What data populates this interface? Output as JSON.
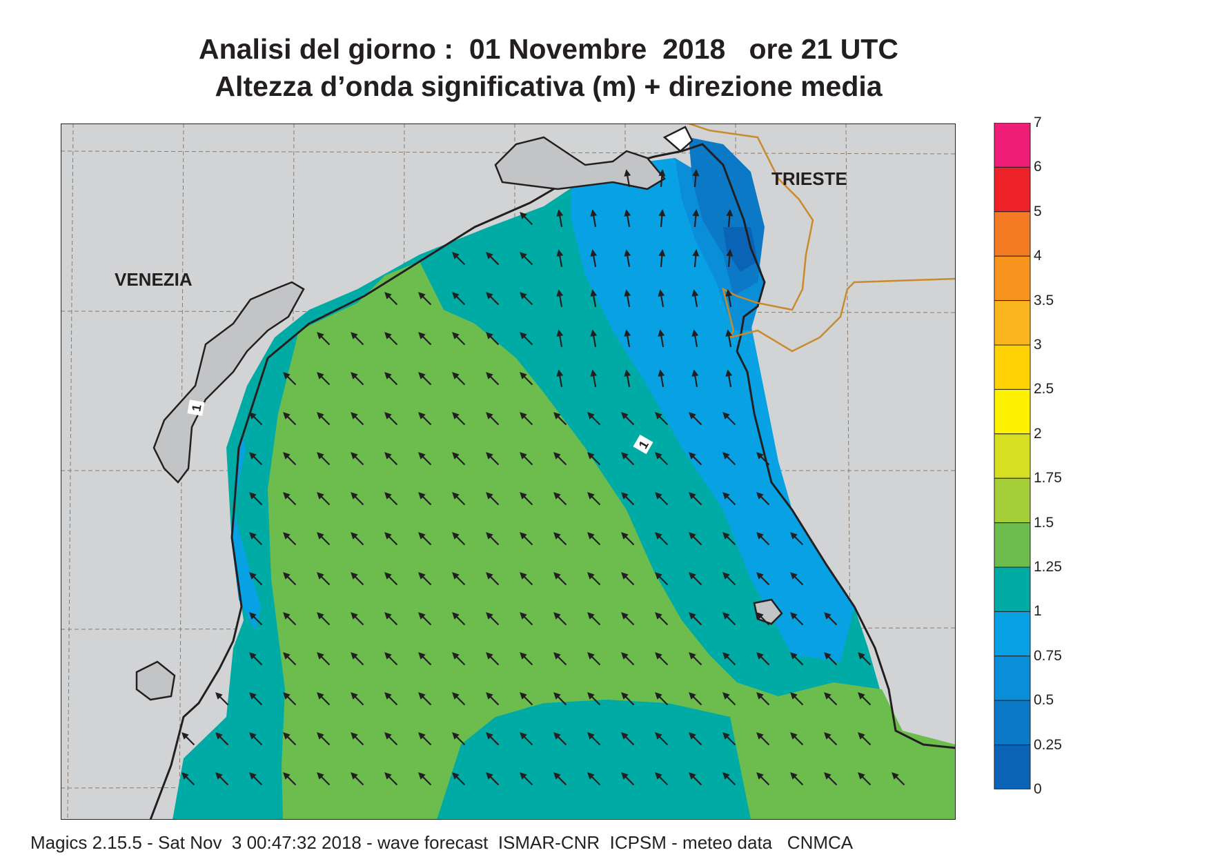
{
  "header": {
    "title_line1": "Analisi del giorno :  01 Novembre  2018   ore 21 UTC",
    "title_line2": "Altezza d’onda significativa (m) + direzione media"
  },
  "map": {
    "labels": {
      "venezia": "VENEZIA",
      "trieste": "TRIESTE"
    },
    "contour_label": "1",
    "colors": {
      "land": "#d1d3d4",
      "border": "#c98b2a",
      "coast": "#231f20",
      "grid": "#8a7a6a",
      "arrow": "#231f20"
    },
    "wave_direction": "towards north-west"
  },
  "legend": {
    "bands": [
      {
        "from": "6",
        "to": "7",
        "color": "#ee1d75"
      },
      {
        "from": "5",
        "to": "6",
        "color": "#ed2128"
      },
      {
        "from": "4",
        "to": "5",
        "color": "#f47a24"
      },
      {
        "from": "3.5",
        "to": "4",
        "color": "#f7941d"
      },
      {
        "from": "3",
        "to": "3.5",
        "color": "#fbb51e"
      },
      {
        "from": "2.5",
        "to": "3",
        "color": "#ffd205"
      },
      {
        "from": "2",
        "to": "2.5",
        "color": "#fff200"
      },
      {
        "from": "1.75",
        "to": "2",
        "color": "#d7df23"
      },
      {
        "from": "1.5",
        "to": "1.75",
        "color": "#a6ce39"
      },
      {
        "from": "1.25",
        "to": "1.5",
        "color": "#6cbc4e"
      },
      {
        "from": "1",
        "to": "1.25",
        "color": "#00aba6"
      },
      {
        "from": "0.75",
        "to": "1",
        "color": "#08a2e4"
      },
      {
        "from": "0.5",
        "to": "0.75",
        "color": "#0b8ed8"
      },
      {
        "from": "0.25",
        "to": "0.5",
        "color": "#0b79c6"
      },
      {
        "from": "0",
        "to": "0.25",
        "color": "#0a63b4"
      }
    ],
    "tick_labels": [
      "7",
      "6",
      "5",
      "4",
      "3.5",
      "3",
      "2.5",
      "2",
      "1.75",
      "1.5",
      "1.25",
      "1",
      "0.75",
      "0.5",
      "0.25",
      "0"
    ]
  },
  "footer": {
    "text": "Magics 2.15.5 - Sat Nov  3 00:47:32 2018 - wave forecast  ISMAR-CNR  ICPSM - meteo data   CNMCA"
  }
}
